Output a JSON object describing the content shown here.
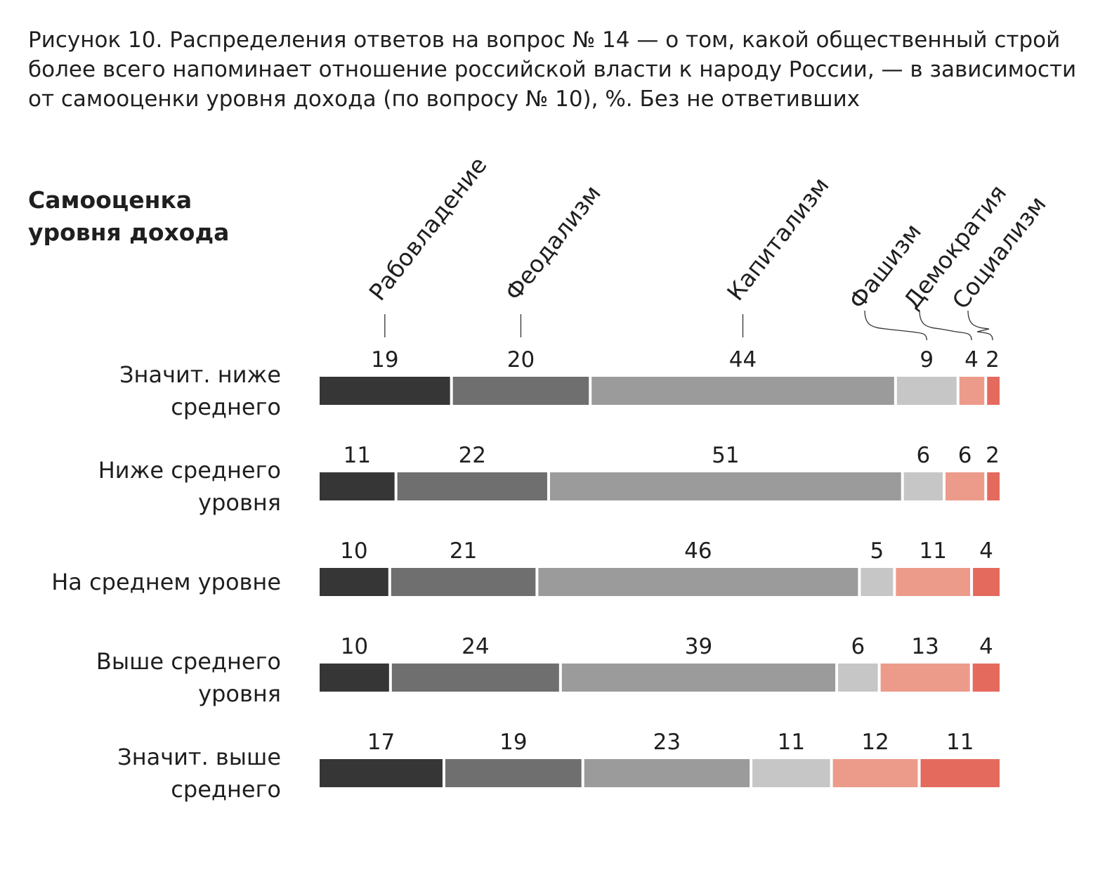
{
  "figure": {
    "caption": "Рисунок 10. Распределения ответов на вопрос № 14 — о том, какой общественный строй более всего напоминает отношение российской власти к народу России, — в зависимости от самооценки уровня дохода (по вопросу № 10), %. Без не ответивших"
  },
  "chart_data": {
    "type": "bar",
    "orientation": "horizontal",
    "stacked": true,
    "row_axis_title": [
      "Самооценка",
      "уровня дохода"
    ],
    "categories": [
      [
        "Значит. ниже",
        "среднего"
      ],
      [
        "Ниже среднего",
        "уровня"
      ],
      [
        "На среднем уровне"
      ],
      [
        "Выше среднего",
        "уровня"
      ],
      [
        "Значит. выше",
        "среднего"
      ]
    ],
    "series": [
      {
        "name": "Рабовладение",
        "color": "#363636",
        "values": [
          19,
          11,
          10,
          10,
          17
        ]
      },
      {
        "name": "Феодализм",
        "color": "#6f6f6f",
        "values": [
          20,
          22,
          21,
          24,
          19
        ]
      },
      {
        "name": "Капитализм",
        "color": "#9b9b9b",
        "values": [
          44,
          51,
          46,
          39,
          23
        ]
      },
      {
        "name": "Фашизм",
        "color": "#c5c6c5",
        "values": [
          9,
          6,
          5,
          6,
          11
        ]
      },
      {
        "name": "Демократия",
        "color": "#ec9b8b",
        "values": [
          4,
          6,
          11,
          13,
          12
        ]
      },
      {
        "name": "Социализм",
        "color": "#e46a5e",
        "values": [
          2,
          2,
          4,
          4,
          11
        ]
      }
    ],
    "legend_placement": "top, rotated labels above first bar"
  }
}
